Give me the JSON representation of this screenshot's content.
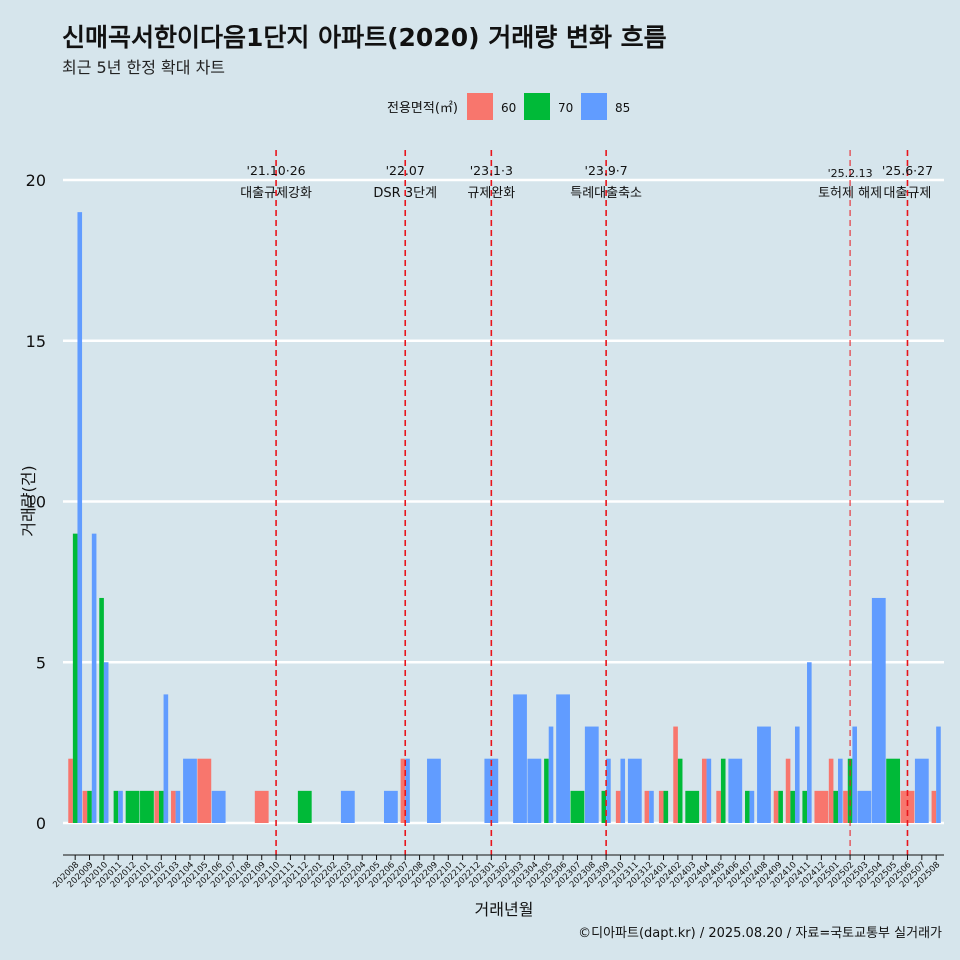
{
  "title": "신매곡서한이다음1단지 아파트(2020) 거래량 변화 흐름",
  "subtitle": "최근 5년 한정 확대 차트",
  "caption": "©디아파트(dapt.kr) / 2025.08.20 / 자료=국토교통부 실거래가",
  "colors": {
    "background": "#d6e5ec",
    "grid": "#ffffff",
    "event_line": "#e8141b"
  },
  "chart_data": {
    "type": "bar",
    "xlabel": "거래년월",
    "ylabel": "거래량(건)",
    "ylim": [
      0,
      21
    ],
    "yticks": [
      0,
      5,
      10,
      15,
      20
    ],
    "grid": true,
    "legend": {
      "title": "전용면적(㎡)",
      "placement": "top-center"
    },
    "categories": [
      "202008",
      "202009",
      "202010",
      "202011",
      "202012",
      "202101",
      "202102",
      "202103",
      "202104",
      "202105",
      "202106",
      "202107",
      "202108",
      "202109",
      "202110",
      "202111",
      "202112",
      "202201",
      "202202",
      "202203",
      "202204",
      "202205",
      "202206",
      "202207",
      "202208",
      "202209",
      "202210",
      "202211",
      "202212",
      "202301",
      "202302",
      "202303",
      "202304",
      "202305",
      "202306",
      "202307",
      "202308",
      "202309",
      "202310",
      "202311",
      "202312",
      "202401",
      "202402",
      "202403",
      "202404",
      "202405",
      "202406",
      "202407",
      "202408",
      "202409",
      "202410",
      "202411",
      "202412",
      "202501",
      "202502",
      "202503",
      "202504",
      "202505",
      "202506",
      "202507",
      "202508"
    ],
    "series": [
      {
        "name": "60",
        "color": "#f8766d",
        "values": [
          2,
          1,
          0,
          0,
          0,
          0,
          1,
          1,
          0,
          2,
          0,
          0,
          0,
          1,
          0,
          0,
          0,
          0,
          0,
          0,
          0,
          0,
          0,
          2,
          0,
          0,
          0,
          0,
          0,
          0,
          0,
          0,
          0,
          0,
          0,
          0,
          0,
          0,
          1,
          0,
          1,
          1,
          3,
          0,
          2,
          1,
          0,
          0,
          0,
          1,
          2,
          0,
          1,
          2,
          1,
          0,
          0,
          0,
          1,
          0,
          1
        ]
      },
      {
        "name": "70",
        "color": "#00ba38",
        "values": [
          9,
          1,
          7,
          1,
          1,
          1,
          1,
          0,
          0,
          0,
          0,
          0,
          0,
          0,
          0,
          0,
          1,
          0,
          0,
          0,
          0,
          0,
          0,
          0,
          0,
          0,
          0,
          0,
          0,
          0,
          0,
          0,
          0,
          2,
          0,
          1,
          0,
          1,
          0,
          0,
          0,
          1,
          2,
          1,
          0,
          2,
          0,
          1,
          0,
          1,
          1,
          1,
          0,
          1,
          2,
          0,
          0,
          2,
          0,
          0,
          0
        ]
      },
      {
        "name": "85",
        "color": "#619cff",
        "values": [
          19,
          9,
          5,
          1,
          0,
          0,
          4,
          1,
          2,
          0,
          1,
          0,
          0,
          0,
          0,
          0,
          0,
          0,
          0,
          1,
          0,
          0,
          1,
          2,
          0,
          2,
          0,
          0,
          0,
          2,
          0,
          4,
          2,
          3,
          4,
          0,
          3,
          2,
          2,
          2,
          1,
          0,
          0,
          0,
          2,
          0,
          2,
          1,
          3,
          0,
          3,
          5,
          0,
          2,
          3,
          1,
          7,
          0,
          0,
          2,
          3
        ]
      }
    ],
    "events": [
      {
        "x": "202110",
        "date": "'21.10·26",
        "label": "대출규제강화"
      },
      {
        "x": "202207",
        "date": "'22.07",
        "label": "DSR 3단계"
      },
      {
        "x": "202301",
        "date": "'23.1·3",
        "label": "규제완화"
      },
      {
        "x": "202309",
        "date": "'23.9·7",
        "label": "특례대출축소"
      },
      {
        "x": "202502",
        "date": "'25.2.13",
        "label": "토허제 해제"
      },
      {
        "x": "202506",
        "date": "'25.6·27",
        "label": "대출규제"
      }
    ]
  }
}
